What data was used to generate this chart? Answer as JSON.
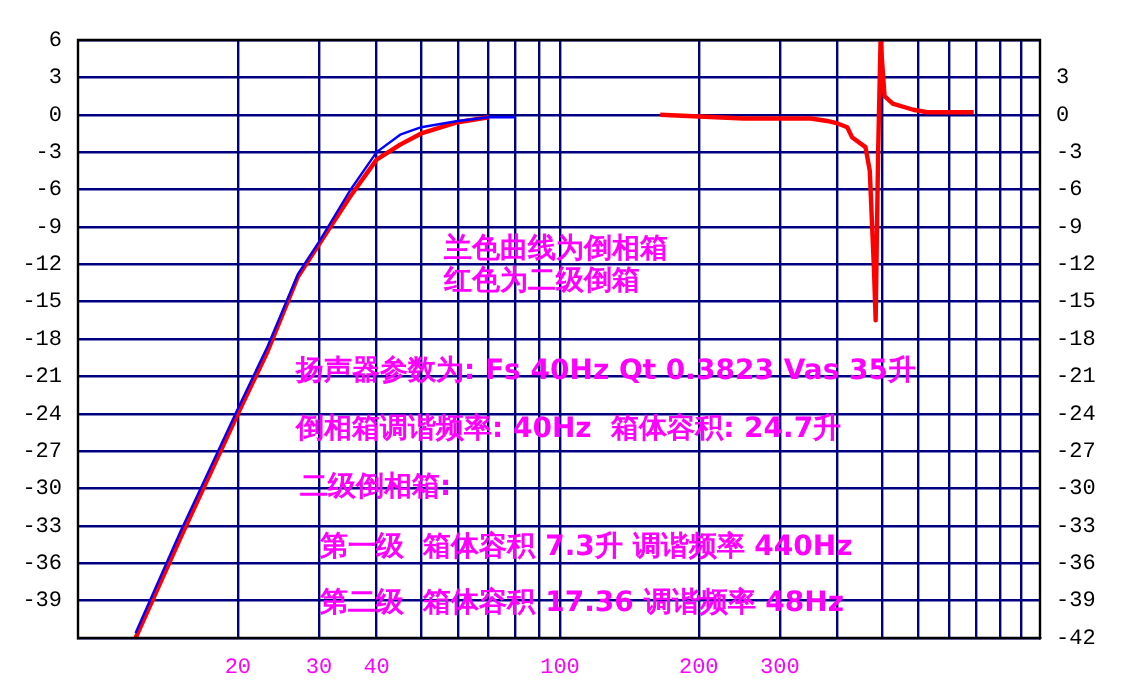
{
  "chart_data": {
    "type": "line",
    "log": "x",
    "grid": true,
    "marker": "none",
    "line_style": "solid",
    "legend": false,
    "xlim": [
      9,
      1100
    ],
    "xticks": [
      20,
      30,
      40,
      {
        "value": 50,
        "label": null
      },
      {
        "value": 60,
        "label": null
      },
      {
        "value": 70,
        "label": null
      },
      {
        "value": 80,
        "label": null
      },
      {
        "value": 90,
        "label": null
      },
      100,
      200,
      300,
      {
        "value": 400,
        "label": null
      },
      {
        "value": 500,
        "label": null
      },
      {
        "value": 600,
        "label": null
      },
      {
        "value": 700,
        "label": null
      },
      {
        "value": 800,
        "label": null
      },
      {
        "value": 900,
        "label": null
      },
      {
        "value": 1000,
        "label": null
      }
    ],
    "ylim": [
      -42,
      6
    ],
    "yticks": [
      6,
      3,
      0,
      -3,
      -6,
      -9,
      -12,
      -15,
      -18,
      -21,
      -24,
      -27,
      -30,
      -33,
      -36,
      -39,
      {
        "value": -42,
        "label": null
      }
    ],
    "y2lim": [
      -42,
      6
    ],
    "y2ticks": [
      3,
      0,
      -3,
      -6,
      -9,
      -12,
      -15,
      -18,
      -21,
      -24,
      -27,
      -30,
      -33,
      -36,
      -39,
      -42
    ],
    "series": [
      {
        "color": "#ff0000",
        "x": [
          12,
          15,
          20,
          23.2,
          27,
          30,
          35,
          40,
          45,
          50,
          60,
          70,
          100,
          165,
          250,
          350,
          380,
          400,
          420,
          430,
          460,
          470,
          480,
          484,
          490,
          496,
          506,
          527,
          584,
          626,
          790
        ],
        "values": [
          -42,
          -34,
          -24,
          -19,
          -13,
          -10.4,
          -6.6,
          -3.6,
          -2.4,
          -1.5,
          -0.6,
          -0.2,
          null,
          0,
          -0.3,
          -0.3,
          -0.5,
          -0.7,
          -1,
          -1.8,
          -2.6,
          -4.5,
          -12.5,
          -16.5,
          -3,
          6,
          1.5,
          0.9,
          0.4,
          0.2,
          0.2
        ]
      },
      {
        "color": "#0000ff",
        "x": [
          12,
          15,
          20,
          23.2,
          27,
          30,
          35,
          40,
          45,
          50,
          60,
          70,
          80
        ],
        "values": [
          -41.6,
          -33.5,
          -23.6,
          -18.6,
          -12.8,
          -10.2,
          -6.1,
          -3,
          -1.6,
          -1,
          -0.5,
          -0.2,
          -0.2
        ]
      }
    ],
    "annotations": [
      "兰色曲线为倒相箱",
      "红色为二级倒箱",
      "扬声器参数为: Fs 40Hz Qt 0.3823 Vas 35升",
      "倒相箱调谐频率: 40Hz  箱体容积: 24.7升",
      "二级倒相箱:",
      "第一级  箱体容积 7.3升 调谐频率 440Hz",
      "第二级  箱体容积 17.36 调谐频率 48Hz"
    ]
  }
}
